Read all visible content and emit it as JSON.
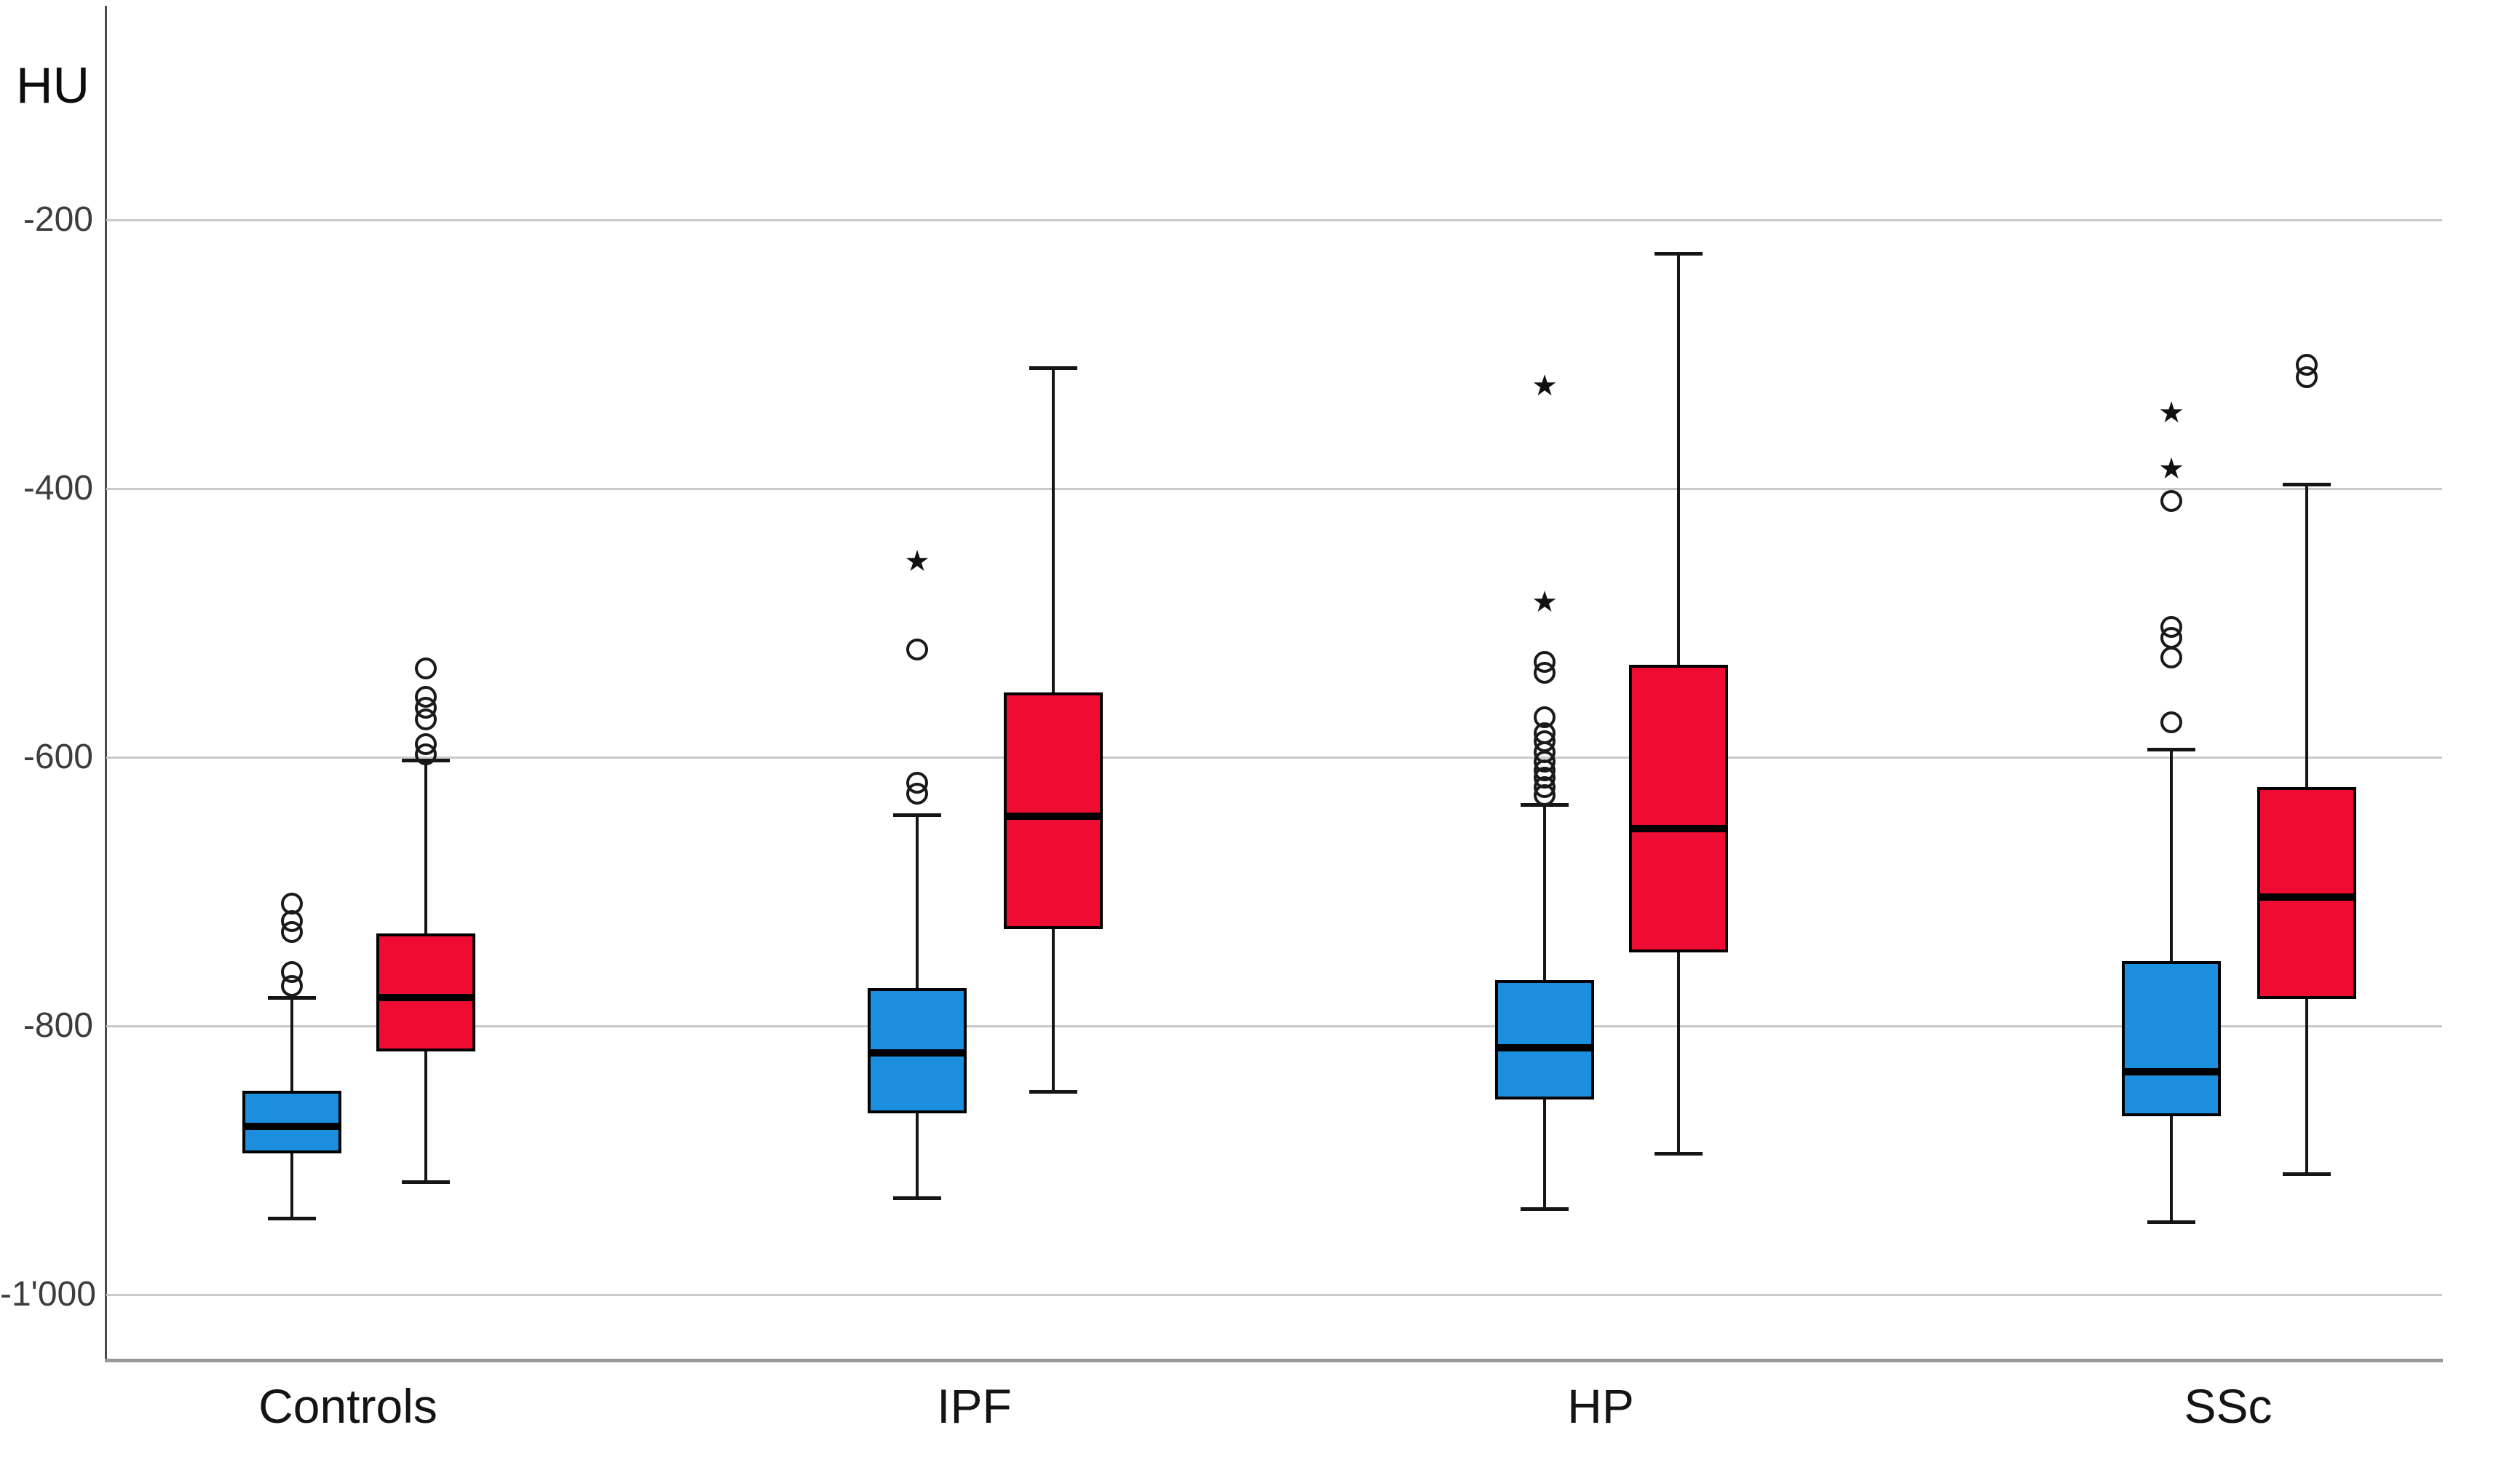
{
  "title": "HU",
  "y_axis": {
    "ticks": [
      {
        "label": "-200",
        "value": -200
      },
      {
        "label": "-400",
        "value": -400
      },
      {
        "label": "-600",
        "value": -600
      },
      {
        "label": "-800",
        "value": -800
      },
      {
        "label": "-1'000",
        "value": -1000
      }
    ]
  },
  "chart_data": {
    "type": "boxplot",
    "title": "",
    "xlabel": "",
    "ylabel": "HU",
    "ylim": [
      -1050,
      -130
    ],
    "grid": "horizontal",
    "legend_position": "none",
    "categories": [
      "Controls",
      "IPF",
      "HP",
      "SSc"
    ],
    "series": [
      {
        "name": "series-blue",
        "color": "#1b8ede",
        "boxes": [
          {
            "category": "Controls",
            "whisker_low": -943,
            "q1": -895,
            "median": -875,
            "q3": -848,
            "whisker_high": -779,
            "outliers_circle": [
              -709,
              -722,
              -730,
              -760,
              -770
            ],
            "outliers_star": []
          },
          {
            "category": "IPF",
            "whisker_low": -928,
            "q1": -865,
            "median": -820,
            "q3": -772,
            "whisker_high": -643,
            "outliers_circle": [
              -520,
              -619,
              -627
            ],
            "outliers_star": [
              -455
            ]
          },
          {
            "category": "HP",
            "whisker_low": -936,
            "q1": -855,
            "median": -816,
            "q3": -766,
            "whisker_high": -635,
            "outliers_circle": [
              -529,
              -537,
              -570,
              -582,
              -588,
              -596,
              -603,
              -610,
              -615,
              -622,
              -628
            ],
            "outliers_star": [
              -324,
              -485
            ]
          },
          {
            "category": "SSc",
            "whisker_low": -946,
            "q1": -867,
            "median": -834,
            "q3": -752,
            "whisker_high": -594,
            "outliers_circle": [
              -409,
              -503,
              -511,
              -526,
              -574
            ],
            "outliers_star": [
              -344,
              -386
            ]
          }
        ]
      },
      {
        "name": "series-red",
        "color": "#ee0c33",
        "boxes": [
          {
            "category": "Controls",
            "whisker_low": -916,
            "q1": -819,
            "median": -779,
            "q3": -731,
            "whisker_high": -602,
            "outliers_circle": [
              -534,
              -555,
              -563,
              -572,
              -590,
              -598
            ],
            "outliers_star": []
          },
          {
            "category": "IPF",
            "whisker_low": -849,
            "q1": -728,
            "median": -644,
            "q3": -552,
            "whisker_high": -310,
            "outliers_circle": [],
            "outliers_star": []
          },
          {
            "category": "HP",
            "whisker_low": -895,
            "q1": -745,
            "median": -653,
            "q3": -531,
            "whisker_high": -225,
            "outliers_circle": [],
            "outliers_star": []
          },
          {
            "category": "SSc",
            "whisker_low": -910,
            "q1": -780,
            "median": -704,
            "q3": -622,
            "whisker_high": -397,
            "outliers_circle": [
              -308,
              -317
            ],
            "outliers_star": []
          }
        ]
      }
    ]
  }
}
